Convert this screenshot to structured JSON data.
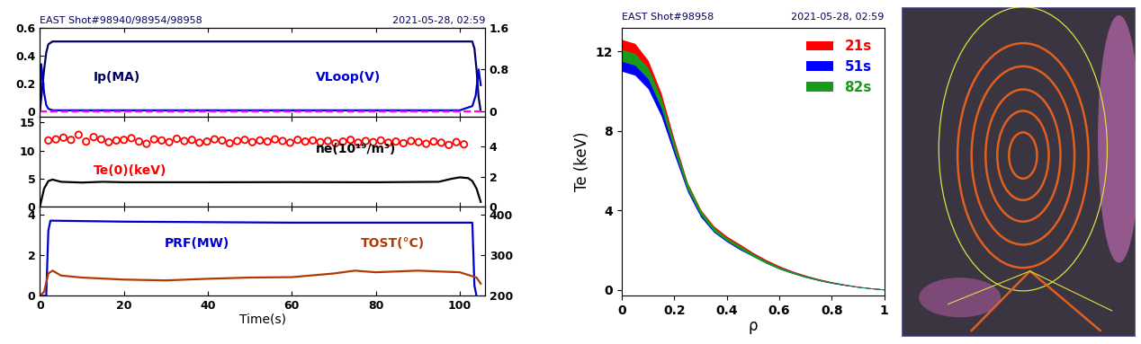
{
  "chart_data": [
    {
      "type": "line",
      "title": "EAST Shot#98940/98954/98958",
      "subtitle": "2021-05-28, 02:59",
      "tick_labels": "y",
      "xlim": [
        0,
        106
      ],
      "xticks": [
        0,
        20,
        40,
        60,
        80,
        100
      ],
      "ylim": [
        -0.04,
        0.6
      ],
      "yticks": [
        0,
        0.2,
        0.4,
        0.6
      ],
      "y2lim": [
        -0.107,
        1.6
      ],
      "y2ticks": [
        0,
        0.8,
        1.6
      ],
      "series": [
        {
          "name": "Ip(MA)",
          "color": "#000060",
          "type": "line",
          "line_style": "solid",
          "x": [
            0,
            0.5,
            1,
            1.5,
            2,
            3,
            103,
            103.5,
            104,
            104.5,
            105
          ],
          "values": [
            0,
            0.15,
            0.3,
            0.42,
            0.48,
            0.5,
            0.5,
            0.45,
            0.3,
            0.1,
            0
          ]
        },
        {
          "name": "VLoop(V)",
          "color": "#0000cc",
          "type": "line",
          "line_style": "solid",
          "axis": "y2",
          "x": [
            0,
            0.3,
            0.6,
            1,
            1.5,
            2,
            3,
            10,
            50,
            100,
            103,
            103.8,
            104.5,
            105
          ],
          "values": [
            0,
            0.9,
            0.7,
            0.35,
            0.12,
            0.05,
            0.02,
            0.02,
            0.02,
            0.02,
            0.1,
            0.3,
            0.8,
            0.5
          ]
        },
        {
          "color": "#ff00ff",
          "type": "line",
          "line_style": "dashed",
          "axis": "y2",
          "x": [
            0,
            106
          ],
          "values": [
            0,
            0
          ]
        }
      ]
    },
    {
      "type": "line",
      "tick_labels": "y",
      "xlim": [
        0,
        106
      ],
      "xticks": [
        0,
        20,
        40,
        60,
        80,
        100
      ],
      "ylim": [
        0,
        16
      ],
      "yticks": [
        0,
        5,
        10,
        15
      ],
      "y2lim": [
        0,
        6
      ],
      "y2ticks": [
        0,
        2,
        4
      ],
      "series": [
        {
          "name": "Te(0)(keV)",
          "color": "#ff0000",
          "type": "scatter",
          "marker": "o",
          "x": [
            2.0,
            3.8,
            5.6,
            7.4,
            9.2,
            11.0,
            12.8,
            14.6,
            16.4,
            18.2,
            20.0,
            21.8,
            23.6,
            25.4,
            27.2,
            29.0,
            30.8,
            32.6,
            34.4,
            36.2,
            38.0,
            39.8,
            41.6,
            43.4,
            45.2,
            47.0,
            48.8,
            50.6,
            52.4,
            54.2,
            56.0,
            57.8,
            59.6,
            61.4,
            63.2,
            65.0,
            66.8,
            68.6,
            70.4,
            72.2,
            74.0,
            75.8,
            77.6,
            79.4,
            81.2,
            83.0,
            84.8,
            86.6,
            88.4,
            90.2,
            92.0,
            93.8,
            95.6,
            97.4,
            99.2,
            101.0
          ],
          "values": [
            11.8,
            12.0,
            12.3,
            11.9,
            12.8,
            11.6,
            12.4,
            12.0,
            11.5,
            11.8,
            11.9,
            12.2,
            11.6,
            11.2,
            12.0,
            11.8,
            11.5,
            12.1,
            11.7,
            11.9,
            11.4,
            11.6,
            12.0,
            11.8,
            11.3,
            11.7,
            11.9,
            11.5,
            11.8,
            11.6,
            12.0,
            11.7,
            11.4,
            11.9,
            11.6,
            11.8,
            11.5,
            11.7,
            11.3,
            11.6,
            11.9,
            11.4,
            11.7,
            11.5,
            11.8,
            11.4,
            11.6,
            11.3,
            11.7,
            11.5,
            11.2,
            11.6,
            11.4,
            11.0,
            11.5,
            11.1
          ]
        },
        {
          "name": "ne(10¹⁹/m³)",
          "color": "#000000",
          "type": "line",
          "line_style": "solid",
          "axis": "y2",
          "x": [
            0,
            1,
            2,
            3,
            5,
            10,
            15,
            20,
            40,
            60,
            80,
            95,
            98,
            100,
            102,
            103,
            104,
            105
          ],
          "values": [
            0,
            1.2,
            1.7,
            1.8,
            1.65,
            1.6,
            1.65,
            1.62,
            1.62,
            1.63,
            1.62,
            1.65,
            1.85,
            1.95,
            1.9,
            1.7,
            1.2,
            0.3
          ]
        }
      ]
    },
    {
      "type": "line",
      "xlabel": "Time(s)",
      "xlim": [
        0,
        106
      ],
      "xticks": [
        0,
        20,
        40,
        60,
        80,
        100
      ],
      "ylim": [
        0,
        4.4
      ],
      "yticks": [
        0,
        2,
        4
      ],
      "y2lim": [
        200,
        420
      ],
      "y2ticks": [
        200,
        300,
        400
      ],
      "series": [
        {
          "name": "PRF(MW)",
          "color": "#0000cc",
          "type": "line",
          "line_style": "solid",
          "x": [
            0,
            1.5,
            2,
            2.5,
            20,
            60,
            100,
            103,
            103.5,
            104
          ],
          "values": [
            0,
            0,
            3.2,
            3.7,
            3.65,
            3.6,
            3.6,
            3.6,
            0.5,
            0
          ]
        },
        {
          "name": "TOST(°C)",
          "color": "#b03a00",
          "type": "line",
          "line_style": "solid",
          "axis": "y2",
          "x": [
            0,
            1,
            2,
            3,
            5,
            10,
            20,
            30,
            40,
            50,
            60,
            70,
            75,
            80,
            90,
            100,
            104,
            105
          ],
          "values": [
            200,
            210,
            255,
            262,
            250,
            245,
            240,
            238,
            242,
            245,
            246,
            255,
            262,
            258,
            262,
            258,
            245,
            230
          ]
        }
      ]
    },
    {
      "type": "band",
      "title": "EAST Shot#98958",
      "subtitle": "2021-05-28, 02:59",
      "xlabel": "ρ",
      "ylabel": "Te (keV)",
      "legend": "upper right",
      "xlim": [
        0,
        1
      ],
      "xticks": [
        0,
        0.2,
        0.4,
        0.6,
        0.8,
        1
      ],
      "ylim": [
        -0.3,
        13.2
      ],
      "yticks": [
        0,
        4,
        8,
        12
      ],
      "x": [
        0,
        0.05,
        0.1,
        0.15,
        0.2,
        0.25,
        0.3,
        0.35,
        0.4,
        0.45,
        0.5,
        0.55,
        0.6,
        0.65,
        0.7,
        0.75,
        0.8,
        0.85,
        0.9,
        0.95,
        1.0
      ],
      "series": [
        {
          "name": "21s",
          "color": "#ff0000",
          "values": [
            12.2,
            12.0,
            11.2,
            9.6,
            7.3,
            5.2,
            3.9,
            3.1,
            2.6,
            2.2,
            1.8,
            1.45,
            1.15,
            0.9,
            0.7,
            0.52,
            0.38,
            0.26,
            0.16,
            0.08,
            0.02
          ],
          "error": [
            0.4,
            0.4,
            0.35,
            0.3,
            0.25,
            0.2,
            0.15,
            0.12,
            0.1,
            0.1,
            0.08,
            0.07,
            0.06,
            0.05,
            0.04,
            0.04,
            0.03,
            0.03,
            0.02,
            0.02,
            0.02
          ]
        },
        {
          "name": "51s",
          "color": "#0000ff",
          "values": [
            11.3,
            11.1,
            10.4,
            9.0,
            7.0,
            5.1,
            3.8,
            3.0,
            2.5,
            2.1,
            1.75,
            1.4,
            1.1,
            0.87,
            0.67,
            0.5,
            0.36,
            0.25,
            0.15,
            0.08,
            0.02
          ],
          "error": [
            0.3,
            0.3,
            0.28,
            0.25,
            0.2,
            0.16,
            0.12,
            0.1,
            0.08,
            0.08,
            0.07,
            0.06,
            0.05,
            0.04,
            0.04,
            0.03,
            0.03,
            0.02,
            0.02,
            0.02,
            0.02
          ]
        },
        {
          "name": "82s",
          "color": "#1a9a1a",
          "values": [
            11.8,
            11.6,
            10.9,
            9.4,
            7.2,
            5.2,
            3.9,
            3.05,
            2.55,
            2.15,
            1.75,
            1.4,
            1.1,
            0.87,
            0.67,
            0.5,
            0.36,
            0.25,
            0.15,
            0.08,
            0.02
          ],
          "error": [
            0.3,
            0.3,
            0.28,
            0.25,
            0.2,
            0.16,
            0.12,
            0.1,
            0.08,
            0.08,
            0.07,
            0.06,
            0.05,
            0.04,
            0.04,
            0.03,
            0.03,
            0.02,
            0.02,
            0.02,
            0.02
          ]
        }
      ]
    }
  ]
}
